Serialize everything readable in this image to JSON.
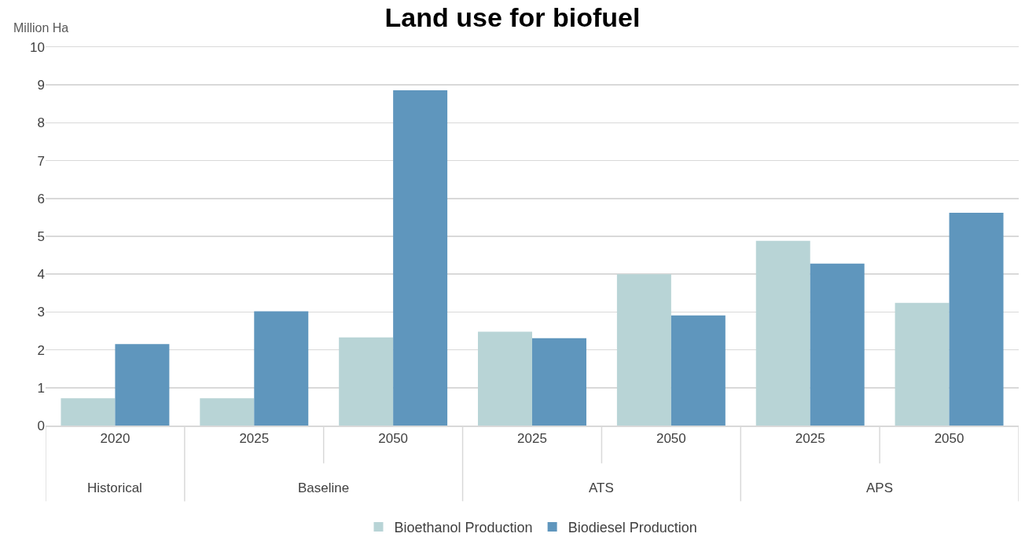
{
  "chart_data": {
    "type": "bar",
    "title": "Land use for biofuel",
    "ylabel": "Million Ha",
    "categories": [
      "2020",
      "2025",
      "2050",
      "2025",
      "2050",
      "2025",
      "2050"
    ],
    "series": [
      {
        "name": "Bioethanol Production",
        "color": "#b8d4d6",
        "values": [
          0.72,
          0.72,
          2.33,
          2.48,
          4.0,
          4.88,
          3.24
        ]
      },
      {
        "name": "Biodiesel Production",
        "color": "#5f96bd",
        "values": [
          2.15,
          3.02,
          8.86,
          2.31,
          2.91,
          4.28,
          5.62
        ]
      }
    ],
    "annotations": [
      "Historical",
      "Baseline",
      "ATS",
      "APS"
    ],
    "ylim": [
      0,
      10
    ],
    "yticks": [
      0,
      1,
      2,
      3,
      4,
      5,
      6,
      7,
      8,
      9,
      10
    ],
    "grid": "y",
    "legend": "bottom"
  }
}
